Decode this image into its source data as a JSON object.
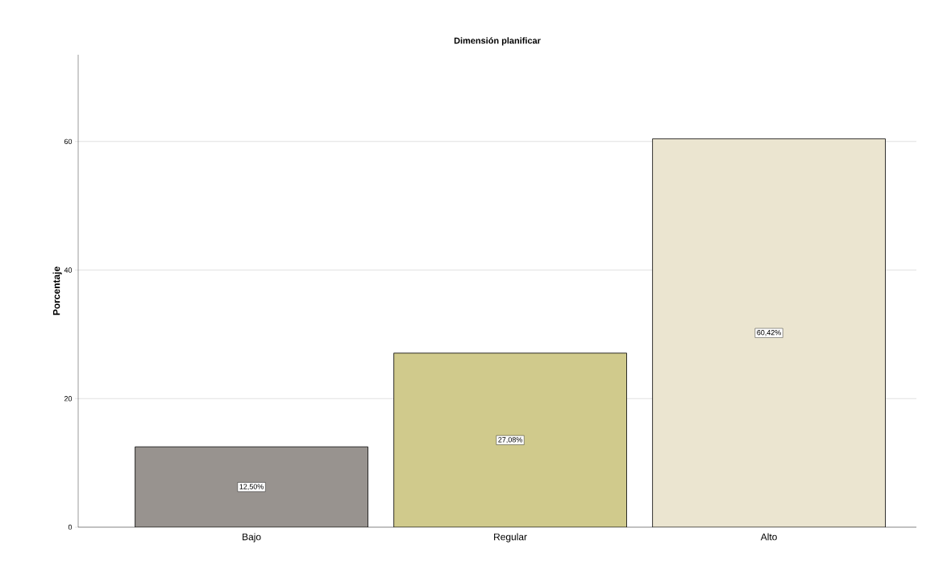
{
  "chart_data": {
    "type": "bar",
    "title": "Dimensión planificar",
    "ylabel": "Porcentaje",
    "categories": [
      "Bajo",
      "Regular",
      "Alto"
    ],
    "values": [
      12.5,
      27.08,
      60.42
    ],
    "colors": [
      "#98938f",
      "#d0ca8c",
      "#ebe5d0"
    ],
    "value_labels": [
      "12,50%",
      "27,08%",
      "60,42%"
    ],
    "ylim": [
      0,
      73.5
    ],
    "yticks": [
      0,
      20,
      40,
      60
    ],
    "grid": "y"
  }
}
